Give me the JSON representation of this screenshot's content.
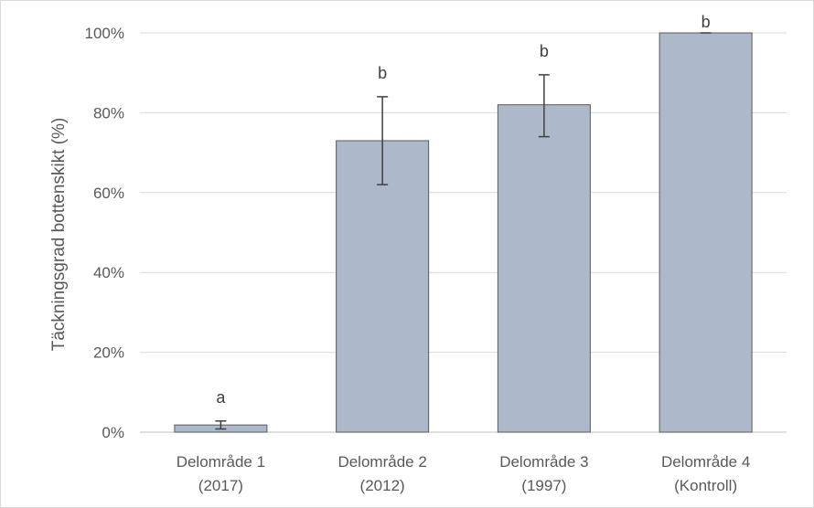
{
  "chart_data": {
    "type": "bar",
    "ylabel": "Täckningsgrad bottenskikt (%)",
    "xlabel": "",
    "ylim": [
      0,
      100
    ],
    "yticks": [
      0,
      20,
      40,
      60,
      80,
      100
    ],
    "ytick_labels": [
      "0%",
      "20%",
      "40%",
      "60%",
      "80%",
      "100%"
    ],
    "grid": true,
    "categories": [
      [
        "Delområde 1",
        "(2017)"
      ],
      [
        "Delområde 2",
        "(2012)"
      ],
      [
        "Delområde 3",
        "(1997)"
      ],
      [
        "Delområde 4",
        "(Kontroll)"
      ]
    ],
    "values": [
      1.8,
      73,
      82,
      100
    ],
    "error_low": [
      0.8,
      62,
      74,
      100
    ],
    "error_high": [
      2.8,
      84,
      89.5,
      100
    ],
    "significance_letters": [
      "a",
      "b",
      "b",
      "b"
    ],
    "bar_color": "#adb9ca",
    "bar_edge_color": "#595959",
    "grid_color": "#d9d9d9"
  }
}
